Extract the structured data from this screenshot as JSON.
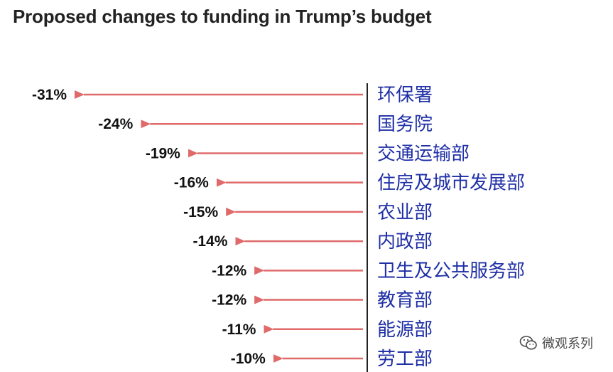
{
  "chart_data": {
    "type": "bar",
    "title": "Proposed changes to funding in Trump’s budget",
    "categories": [
      "环保署",
      "国务院",
      "交通运输部",
      "住房及城市发展部",
      "农业部",
      "内政部",
      "卫生及公共服务部",
      "教育部",
      "能源部",
      "劳工部"
    ],
    "values": [
      -31,
      -24,
      -19,
      -16,
      -15,
      -14,
      -12,
      -12,
      -11,
      -10
    ],
    "value_labels": [
      "-31%",
      "-24%",
      "-19%",
      "-16%",
      "-15%",
      "-14%",
      "-12%",
      "-12%",
      "-11%",
      "-10%"
    ],
    "unit": "%",
    "xlim": [
      -31,
      0
    ],
    "grid": false,
    "colors": {
      "arrow": "#e06a6a",
      "axis": "#222222",
      "category_text": "#1f2fa6",
      "value_text": "#111111"
    }
  },
  "watermark": {
    "text": "微观系列",
    "icon": "wechat-icon"
  }
}
